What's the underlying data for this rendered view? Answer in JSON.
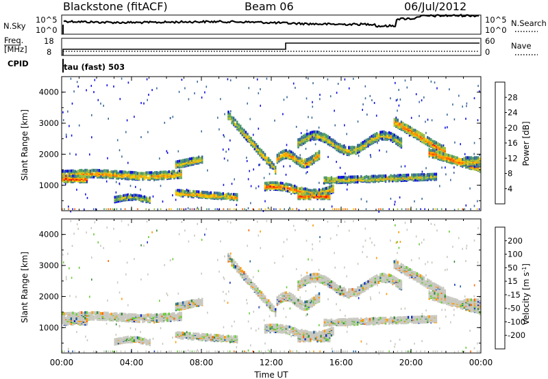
{
  "header": {
    "station": "Blackstone (fitACF)",
    "beam": "Beam 06",
    "date": "06/Jul/2012"
  },
  "panels": {
    "nsky": {
      "label": "N.Sky",
      "right_label": "N.Search",
      "left_ticks": [
        "10^5",
        "10^0"
      ],
      "right_ticks": [
        "10^5",
        "10^0"
      ]
    },
    "freq": {
      "label_top": "Freq.",
      "label_unit": "[MHz]",
      "right_label": "Nave",
      "left_ticks": [
        "18",
        "8"
      ],
      "right_ticks": [
        "60",
        "0"
      ]
    },
    "cpid": {
      "label": "CPID",
      "value": "tau (fast) 503"
    }
  },
  "colorbars": {
    "power": {
      "label": "Power [dB]",
      "ticks": [
        "28",
        "24",
        "20",
        "16",
        "12",
        "8",
        "4"
      ],
      "colors": [
        "#ff0000",
        "#ff5a00",
        "#ff9600",
        "#ffc800",
        "#a0c040",
        "#4a9a6a",
        "#3a6a9a",
        "#1010e0"
      ]
    },
    "velocity": {
      "label_main": "Velocity [m s",
      "label_exp": "-1",
      "label_end": "]",
      "ticks": [
        "200",
        "100",
        "50",
        "15",
        "-15",
        "-50",
        "-100",
        "-200"
      ],
      "colors": [
        "#1030c0",
        "#2060a0",
        "#3a8a3a",
        "#66cc33",
        "#c8c8c0",
        "#ff9900",
        "#ff6600",
        "#ff2200",
        "#e00000"
      ]
    }
  },
  "chart_data": [
    {
      "type": "heatmap",
      "name": "power",
      "ylabel": "Slant Range [km]",
      "xlim": [
        0,
        24
      ],
      "ylim": [
        180,
        4500
      ],
      "yticks": [
        "4000",
        "3000",
        "2000",
        "1000"
      ],
      "ytick_values": [
        4000,
        3000,
        2000,
        1000
      ]
    },
    {
      "type": "heatmap",
      "name": "velocity",
      "ylabel": "Slant Range [km]",
      "xlim": [
        0,
        24
      ],
      "ylim": [
        180,
        4500
      ],
      "yticks": [
        "4000",
        "3000",
        "2000",
        "1000"
      ],
      "ytick_values": [
        4000,
        3000,
        2000,
        1000
      ]
    }
  ],
  "xaxis": {
    "label": "Time UT",
    "ticks": [
      "00:00",
      "04:00",
      "08:00",
      "12:00",
      "16:00",
      "20:00",
      "00:00"
    ],
    "tick_hours": [
      0,
      4,
      8,
      12,
      16,
      20,
      24
    ]
  }
}
